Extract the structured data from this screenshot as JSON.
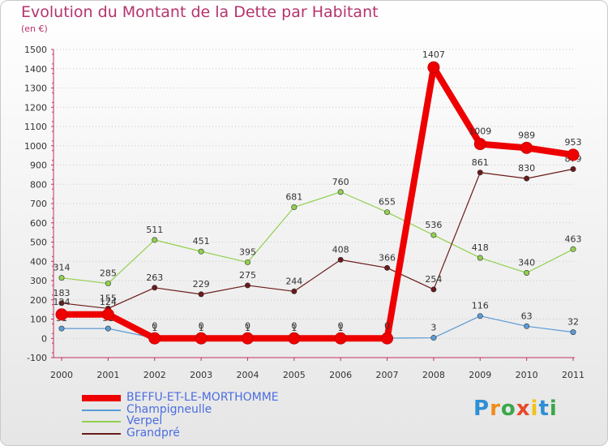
{
  "chart_data": {
    "type": "line",
    "title": "Evolution du Montant de la Dette par Habitant",
    "subtitle": "(en €)",
    "xlabel": "",
    "ylabel": "",
    "x": [
      "2000",
      "2001",
      "2002",
      "2003",
      "2004",
      "2005",
      "2006",
      "2007",
      "2008",
      "2009",
      "2010",
      "2011"
    ],
    "ylim": [
      -100,
      1500
    ],
    "yticks": [
      -100,
      0,
      100,
      200,
      300,
      400,
      500,
      600,
      700,
      800,
      900,
      1000,
      1100,
      1200,
      1300,
      1400,
      1500
    ],
    "grid": "horizontal-dotted",
    "legend_position": "bottom-left",
    "series": [
      {
        "name": "Champigneulle",
        "color": "#5b9bd5",
        "values": [
          51,
          51,
          1,
          1,
          1,
          1,
          1,
          1,
          3,
          116,
          63,
          32
        ]
      },
      {
        "name": "Verpel",
        "color": "#92d050",
        "values": [
          314,
          285,
          511,
          451,
          395,
          681,
          760,
          655,
          536,
          418,
          340,
          463
        ]
      },
      {
        "name": "Grandpré",
        "color": "#6b1a1a",
        "values": [
          183,
          155,
          263,
          229,
          275,
          244,
          408,
          366,
          254,
          861,
          830,
          879
        ]
      },
      {
        "name": "BEFFU-ET-LE-MORTHOMME",
        "color": "#ee0000",
        "values": [
          124,
          124,
          0,
          0,
          0,
          0,
          0,
          0,
          1407,
          1009,
          989,
          953
        ]
      }
    ]
  },
  "logo": {
    "text": "Proxiti"
  }
}
